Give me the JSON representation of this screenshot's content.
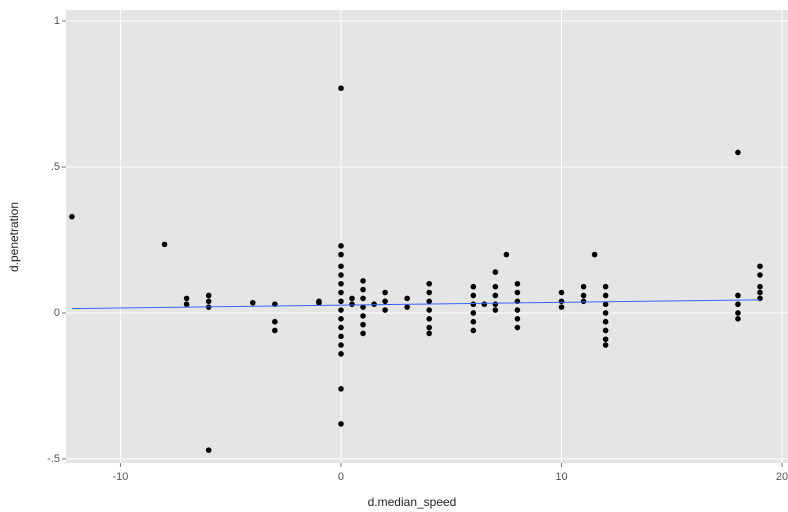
{
  "chart_data": {
    "type": "scatter",
    "x_label": "d.median_speed",
    "y_label": "d.penetration",
    "xlim": [
      -12.47,
      20.27
    ],
    "ylim": [
      -0.514,
      1.038
    ],
    "xticks": [
      -10,
      0,
      10,
      20
    ],
    "yticks": [
      {
        "value": -0.5,
        "label": "-.5"
      },
      0,
      {
        "value": 0.5,
        "label": ".5"
      },
      1
    ],
    "grid": true,
    "color": "#000000",
    "x": [
      -12.2,
      -8,
      -7,
      -7,
      -6,
      -6,
      -6,
      -6,
      -4,
      -3,
      -3,
      -3,
      -1,
      -1,
      0,
      0,
      0,
      0,
      0,
      0,
      0,
      0,
      0,
      0,
      0,
      0,
      0,
      0,
      0,
      0,
      0.5,
      0.5,
      1,
      1,
      1,
      1,
      1,
      1,
      1,
      1.5,
      2,
      2,
      2,
      3,
      3,
      4,
      4,
      4,
      4,
      4,
      4,
      4,
      6,
      6,
      6,
      6,
      6,
      6,
      6.5,
      7,
      7,
      7,
      7,
      7,
      7.5,
      8,
      8,
      8,
      8,
      8,
      8,
      10,
      10,
      10,
      11,
      11,
      11,
      11.5,
      12,
      12,
      12,
      12,
      12,
      12,
      12,
      12,
      18,
      18,
      18,
      18,
      18,
      19,
      19,
      19,
      19,
      19
    ],
    "values": [
      0.33,
      0.235,
      0.05,
      0.03,
      0.06,
      0.04,
      0.02,
      -0.47,
      0.035,
      0.03,
      -0.03,
      -0.06,
      0.04,
      0.035,
      0.77,
      0.23,
      0.2,
      0.16,
      0.13,
      0.1,
      0.07,
      0.04,
      0.01,
      -0.02,
      -0.05,
      -0.08,
      -0.11,
      -0.14,
      -0.26,
      -0.38,
      0.05,
      0.03,
      0.11,
      0.08,
      0.05,
      0.02,
      -0.01,
      -0.04,
      -0.07,
      0.03,
      0.07,
      0.04,
      0.01,
      0.05,
      0.02,
      0.1,
      0.07,
      0.04,
      0.01,
      -0.02,
      -0.05,
      -0.07,
      0.09,
      0.06,
      0.03,
      0,
      -0.03,
      -0.06,
      0.03,
      0.14,
      0.09,
      0.06,
      0.03,
      0.01,
      0.2,
      0.1,
      0.07,
      0.04,
      0.01,
      -0.02,
      -0.05,
      0.07,
      0.04,
      0.02,
      0.09,
      0.06,
      0.04,
      0.2,
      0.09,
      0.06,
      0.03,
      0,
      -0.03,
      -0.06,
      -0.09,
      -0.11,
      0.55,
      0.06,
      0.03,
      0,
      -0.02,
      0.16,
      0.13,
      0.09,
      0.07,
      0.05
    ],
    "fit": {
      "x": [
        -12.2,
        19
      ],
      "values": [
        0.015,
        0.045
      ],
      "color": "#3366ff"
    }
  }
}
